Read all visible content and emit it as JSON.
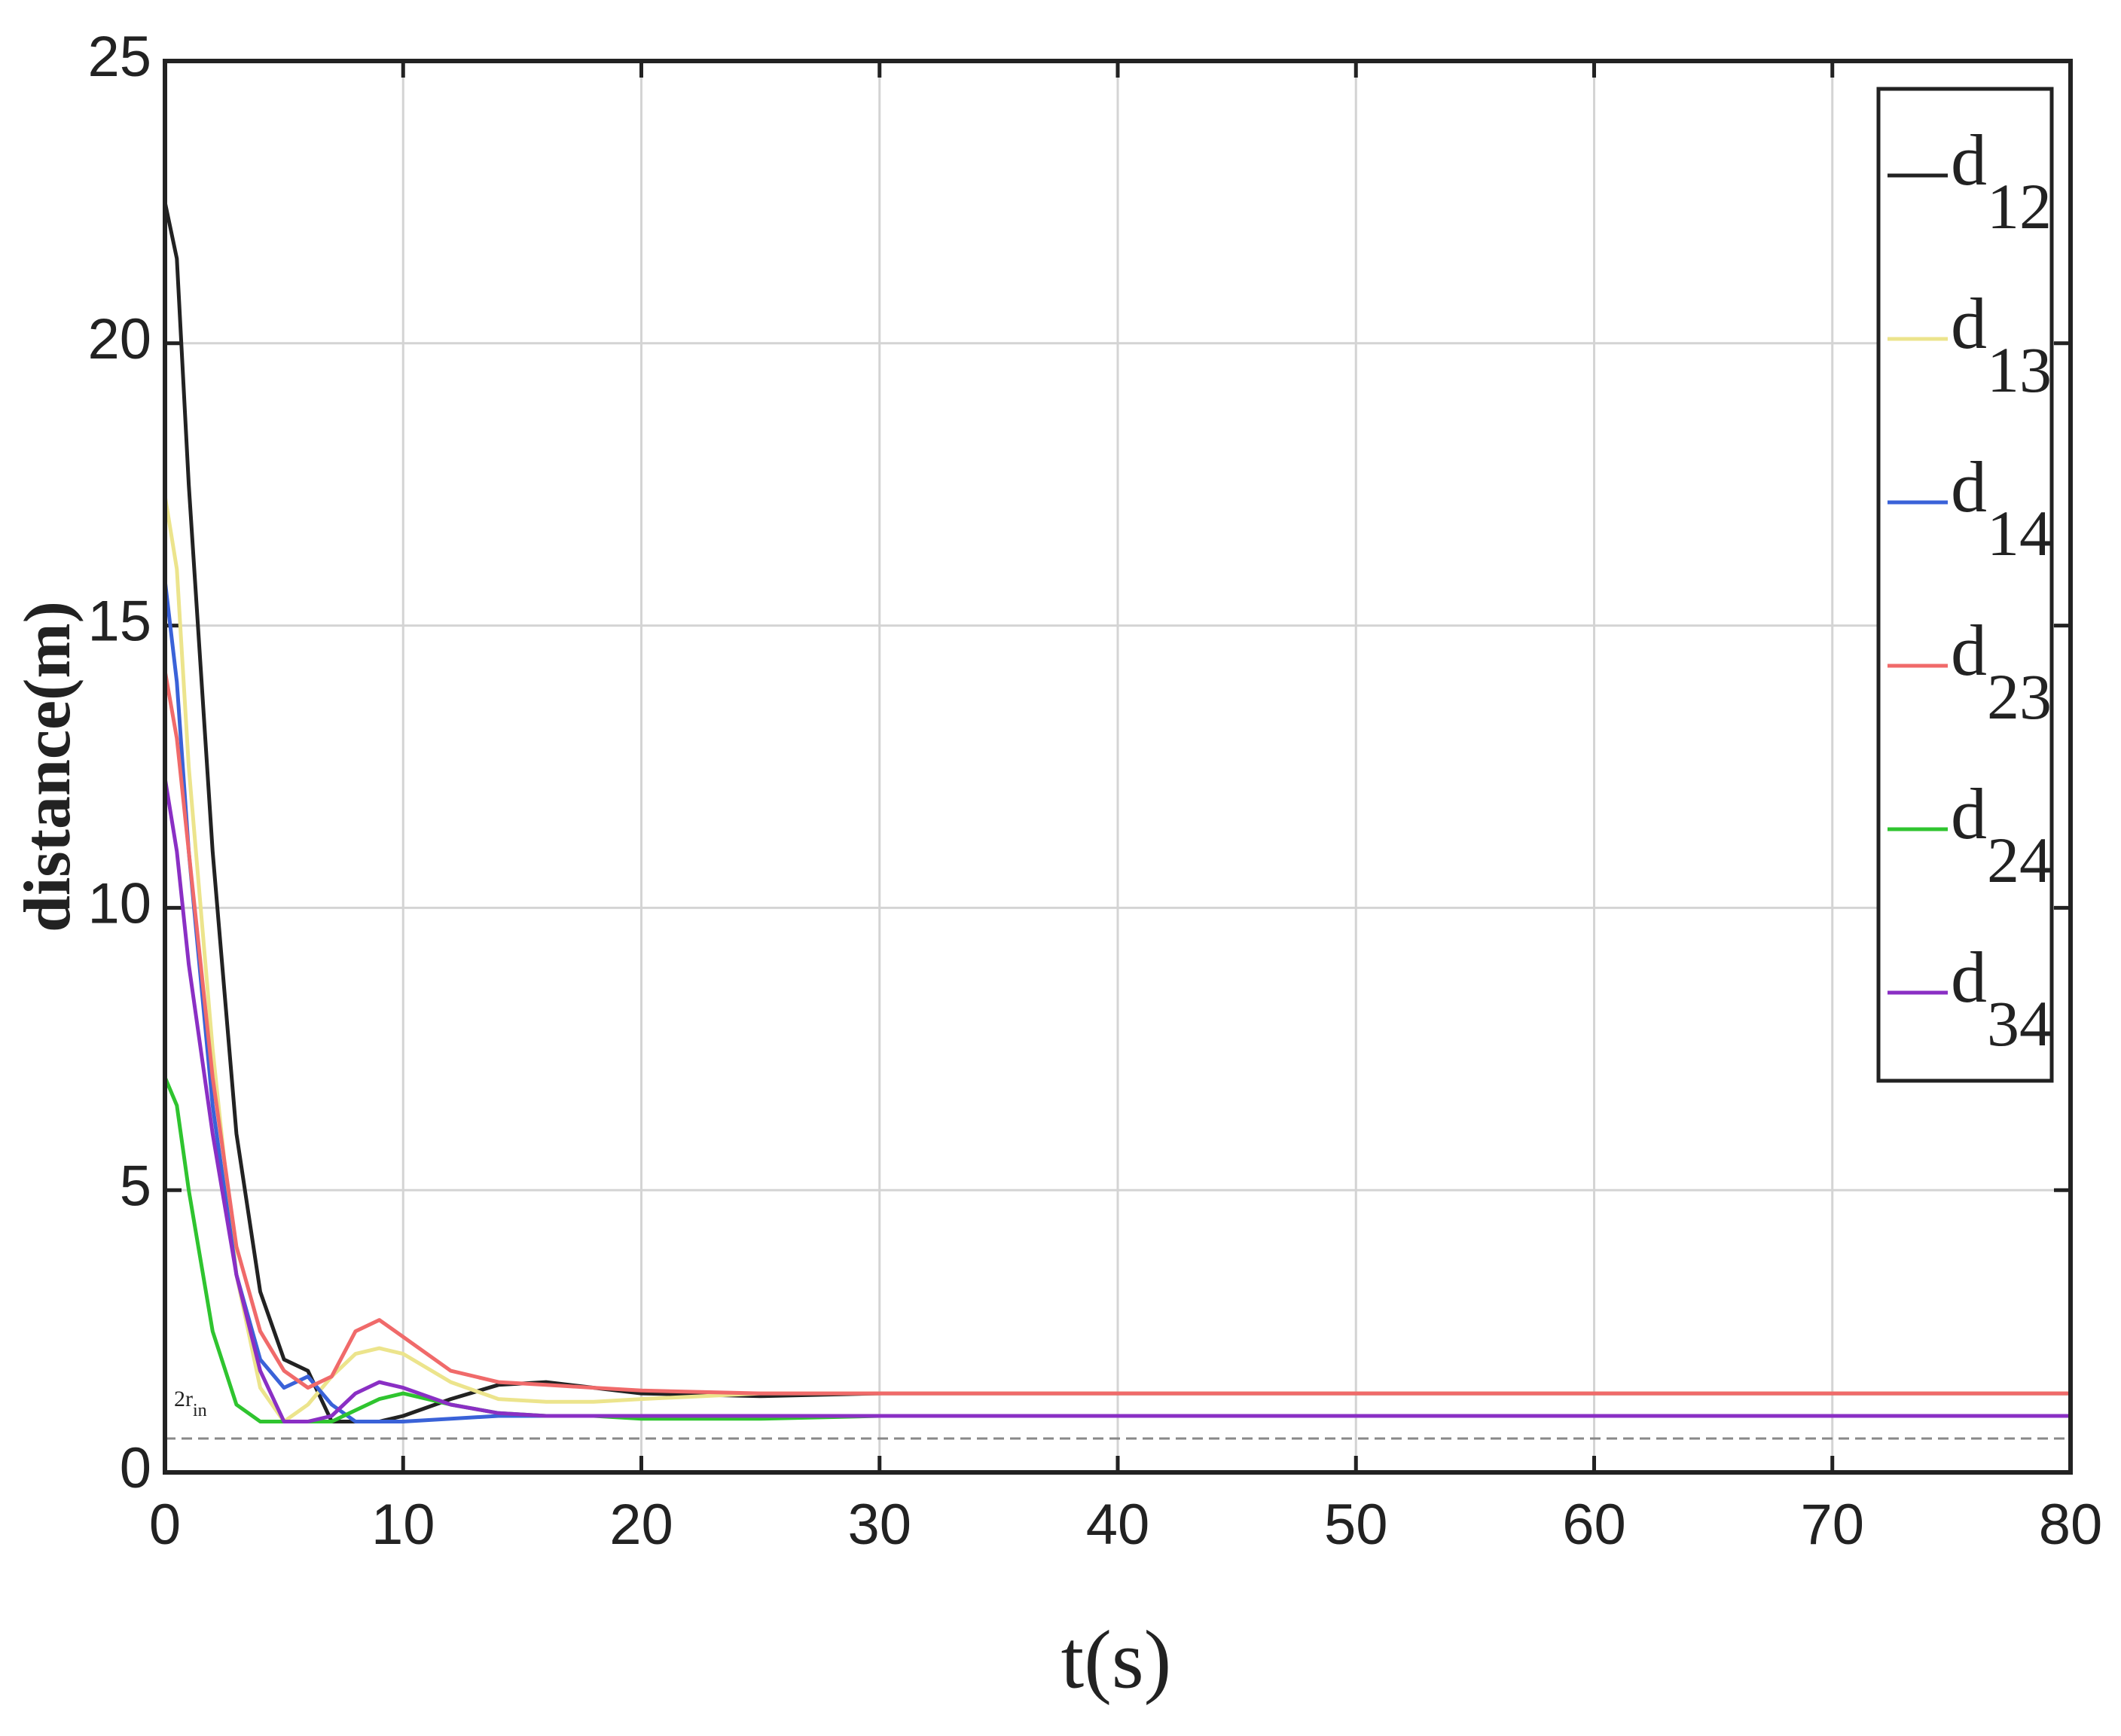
{
  "chart_data": {
    "type": "line",
    "xlabel": "t(s)",
    "ylabel": "distance(m)",
    "x": [
      0,
      0.5,
      1,
      2,
      3,
      4,
      5,
      6,
      7,
      8,
      9,
      10,
      12,
      14,
      16,
      18,
      20,
      25,
      30,
      40,
      80
    ],
    "series": [
      {
        "name": "d12",
        "color": "#222222",
        "values": [
          22.5,
          21.5,
          17.5,
          11,
          6,
          3.2,
          2.0,
          1.8,
          0.9,
          0.9,
          0.9,
          1.0,
          1.3,
          1.55,
          1.6,
          1.5,
          1.4,
          1.35,
          1.4,
          1.4,
          1.4
        ]
      },
      {
        "name": "d13",
        "color": "#ece48c",
        "values": [
          17.3,
          16,
          12.5,
          7.5,
          3.5,
          1.5,
          0.9,
          1.2,
          1.7,
          2.1,
          2.2,
          2.1,
          1.6,
          1.3,
          1.25,
          1.25,
          1.3,
          1.4,
          1.4,
          1.4,
          1.4
        ]
      },
      {
        "name": "d14",
        "color": "#3a62d8",
        "values": [
          15.8,
          14,
          11,
          6.5,
          3.5,
          2.0,
          1.5,
          1.7,
          1.2,
          0.9,
          0.9,
          0.9,
          0.95,
          1.0,
          1.0,
          1.0,
          1.0,
          1.0,
          1.0,
          1.0,
          1.0
        ]
      },
      {
        "name": "d23",
        "color": "#f06a6a",
        "values": [
          14.2,
          13,
          11,
          7,
          4,
          2.5,
          1.8,
          1.5,
          1.7,
          2.5,
          2.7,
          2.4,
          1.8,
          1.6,
          1.55,
          1.5,
          1.45,
          1.4,
          1.4,
          1.4,
          1.4
        ]
      },
      {
        "name": "d24",
        "color": "#2fc42f",
        "values": [
          7.0,
          6.5,
          5,
          2.5,
          1.2,
          0.9,
          0.9,
          0.9,
          0.9,
          1.1,
          1.3,
          1.4,
          1.2,
          1.05,
          1.0,
          1.0,
          0.95,
          0.95,
          1.0,
          1.0,
          1.0
        ]
      },
      {
        "name": "d34",
        "color": "#8a2fc4",
        "values": [
          12.3,
          11,
          9,
          6,
          3.5,
          1.8,
          0.9,
          0.9,
          1.0,
          1.4,
          1.6,
          1.5,
          1.2,
          1.05,
          1.0,
          1.0,
          1.0,
          1.0,
          1.0,
          1.0,
          1.0
        ]
      }
    ],
    "xlim": [
      0,
      80
    ],
    "xticks": [
      0,
      10,
      20,
      30,
      40,
      50,
      60,
      70,
      80
    ],
    "ylim": [
      0,
      25
    ],
    "yticks": [
      0,
      5,
      10,
      15,
      20,
      25
    ],
    "grid": true,
    "legend": "upper right",
    "reference_line": 0.6,
    "annotation_main": "2r",
    "annotation_sub": "in"
  }
}
